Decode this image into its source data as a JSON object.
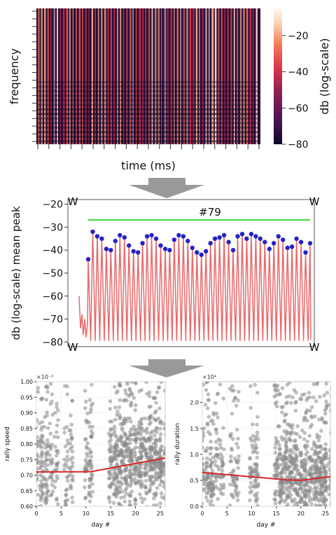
{
  "chart_data": [
    {
      "type": "heatmap",
      "ylabel": "frequency",
      "xlabel": "time (ms)",
      "colorbar": {
        "label": "db (log-scale)",
        "ticks": [
          "−20",
          "−40",
          "−60",
          "−80"
        ],
        "range": [
          -80,
          -5
        ],
        "colors": [
          "#0d0829",
          "#4a1553",
          "#8f1d51",
          "#d9354c",
          "#f57e56",
          "#fcd8bd",
          "#fff6ee"
        ]
      }
    },
    {
      "type": "line",
      "ylabel": "db (log-scale) mean peak",
      "ylim": [
        -82,
        -18
      ],
      "yticks": [
        -20,
        -30,
        -40,
        -50,
        -60,
        -70,
        -80
      ],
      "ytick_labels": [
        "−20",
        "−30",
        "−40",
        "−50",
        "−60",
        "−70",
        "−80"
      ],
      "annotation": "#79",
      "markers": [
        "W",
        "W",
        "W",
        "W"
      ],
      "line_color": "#e8696a",
      "peak_color": "#2323c8",
      "bar_color": "#3ddc3d",
      "n_peaks": 50,
      "peaks": [
        -44,
        -32,
        -34,
        -35,
        -39.5,
        -40,
        -36,
        -33.5,
        -34.5,
        -38,
        -40.5,
        -41,
        -37,
        -34,
        -33.5,
        -35,
        -38,
        -39.5,
        -40,
        -35.5,
        -33.5,
        -34,
        -36,
        -39,
        -41,
        -42,
        -40.5,
        -37,
        -35,
        -34.5,
        -33.5,
        -36.5,
        -40,
        -34,
        -33,
        -35,
        -33,
        -34,
        -35,
        -36.5,
        -39.5,
        -37,
        -34,
        -35.5,
        -39,
        -38.5,
        -35,
        -36.5,
        -41,
        -37
      ]
    },
    {
      "type": "scatter",
      "xlabel": "day #",
      "ylabel": "rally speed",
      "scale_label": "×10⁻³",
      "xlim": [
        0,
        26
      ],
      "ylim": [
        0.6,
        1.0
      ],
      "xticks": [
        0,
        5,
        10,
        15,
        20,
        25
      ],
      "yticks": [
        0.6,
        0.65,
        0.7,
        0.75,
        0.8,
        0.85,
        0.9,
        0.95,
        1.0
      ],
      "ytick_labels": [
        "0.60",
        "0.65",
        "0.70",
        "0.75",
        "0.80",
        "0.85",
        "0.90",
        "0.95",
        "1.00"
      ],
      "trend": {
        "x": [
          0,
          11,
          26
        ],
        "y": [
          0.71,
          0.711,
          0.755
        ]
      },
      "point_color": "#8a8a8a",
      "trend_color": "#d62728",
      "days": [
        0,
        1,
        2,
        3,
        4,
        6,
        7,
        10,
        11,
        15,
        16,
        17,
        18,
        19,
        20,
        21,
        22,
        23,
        24,
        25,
        26
      ],
      "day_density": [
        1,
        2,
        2,
        1,
        1,
        1,
        1,
        1,
        2,
        2,
        3,
        3,
        3,
        3,
        2,
        3,
        2,
        3,
        3,
        3,
        1
      ]
    },
    {
      "type": "scatter",
      "xlabel": "day #",
      "ylabel": "rally duration",
      "scale_label": "×10⁴",
      "xlim": [
        0,
        26
      ],
      "ylim": [
        0,
        2.4
      ],
      "xticks": [
        0,
        5,
        10,
        15,
        20,
        25
      ],
      "yticks": [
        0,
        0.5,
        1.0,
        1.5,
        2.0
      ],
      "ytick_labels": [
        "0.0",
        "0.5",
        "1.0",
        "1.5",
        "2.0"
      ],
      "trend": {
        "x": [
          0,
          17,
          20,
          26
        ],
        "y": [
          0.65,
          0.51,
          0.5,
          0.57
        ]
      },
      "point_color": "#8a8a8a",
      "trend_color": "#d62728",
      "days": [
        0,
        1,
        2,
        3,
        4,
        6,
        7,
        10,
        11,
        15,
        16,
        17,
        18,
        19,
        20,
        21,
        22,
        23,
        24,
        25,
        26
      ],
      "day_density": [
        1,
        2,
        2,
        1,
        1,
        1,
        1,
        1,
        2,
        2,
        3,
        3,
        3,
        3,
        2,
        3,
        2,
        3,
        3,
        3,
        1
      ]
    }
  ]
}
